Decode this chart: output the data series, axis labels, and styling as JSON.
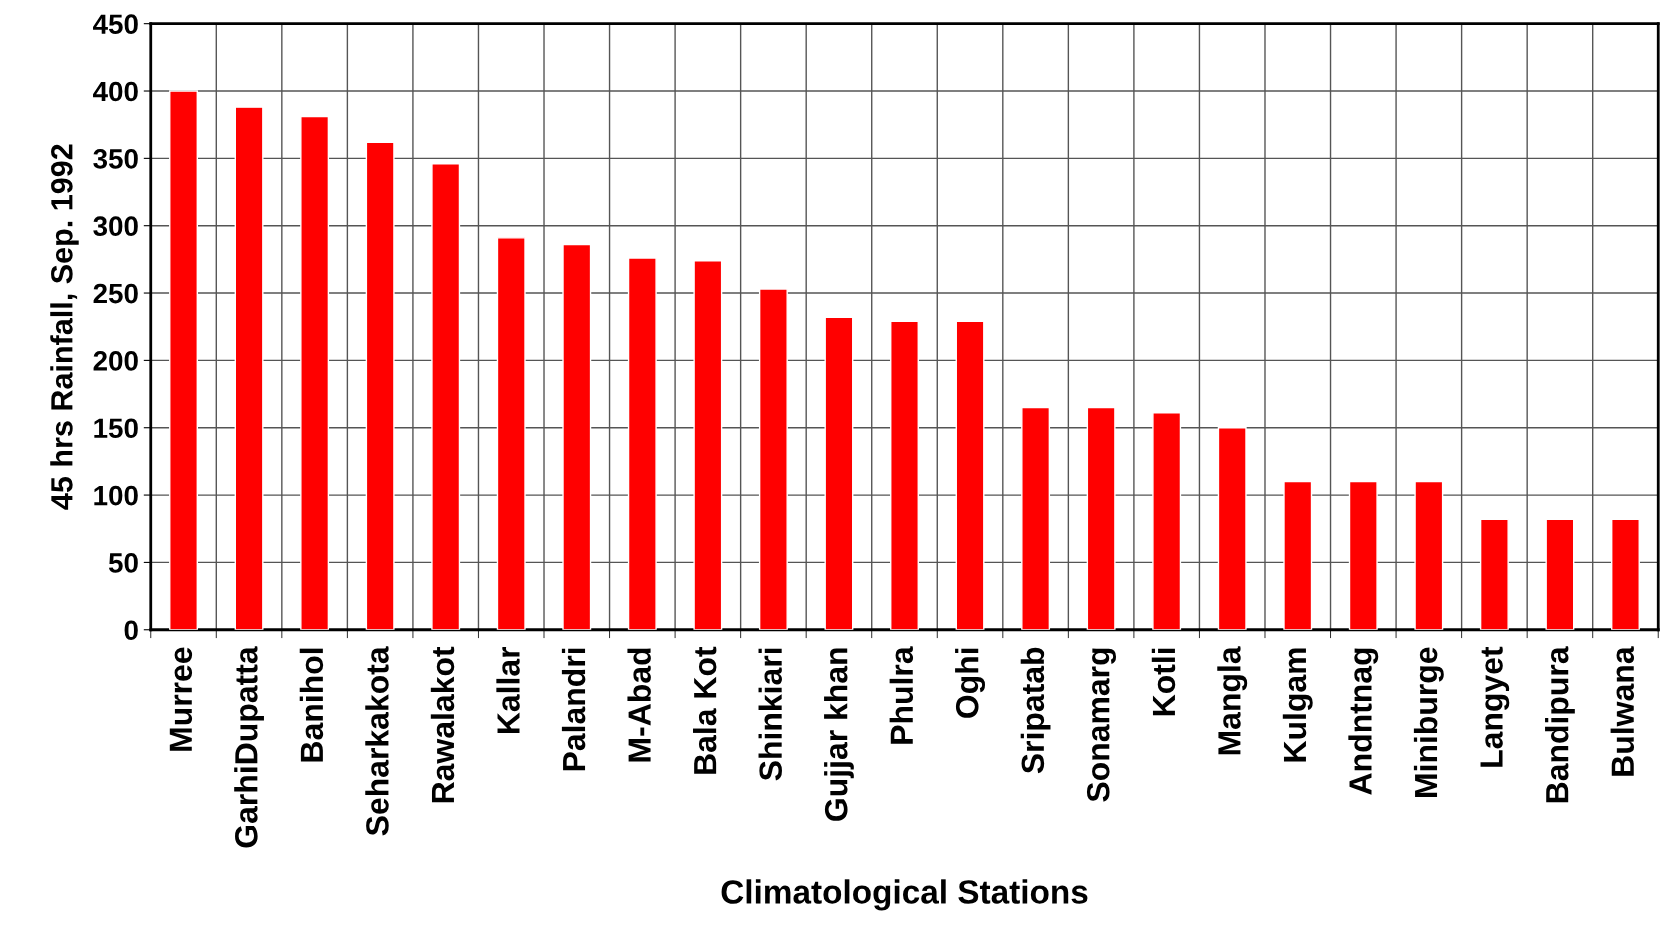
{
  "chart_data": {
    "type": "bar",
    "xlabel": "Climatological Stations",
    "ylabel": "45 hrs Rainfall, Sep. 1992",
    "categories": [
      "Murree",
      "GarhiDupatta",
      "Banihol",
      "Seharkakota",
      "Rawalakot",
      "Kallar",
      "Palandri",
      "M-Abad",
      "Bala Kot",
      "Shinkiari",
      "Gujjar khan",
      "Phulra",
      "Oghi",
      "Sripatab",
      "Sonamarg",
      "Kotli",
      "Mangla",
      "Kulgam",
      "Andntnag",
      "Miniburge",
      "Langyet",
      "Bandipura",
      "Bulwana"
    ],
    "series": [
      {
        "color": "#ff0000",
        "values": [
          400,
          388,
          381,
          362,
          346,
          291,
          286,
          276,
          274,
          253,
          232,
          229,
          229,
          165,
          165,
          161,
          150,
          110,
          110,
          110,
          82,
          82,
          82
        ]
      }
    ],
    "ylim": [
      0,
      450
    ],
    "yticks": [
      0,
      50,
      100,
      150,
      200,
      250,
      300,
      350,
      400,
      450
    ],
    "grid": true
  }
}
